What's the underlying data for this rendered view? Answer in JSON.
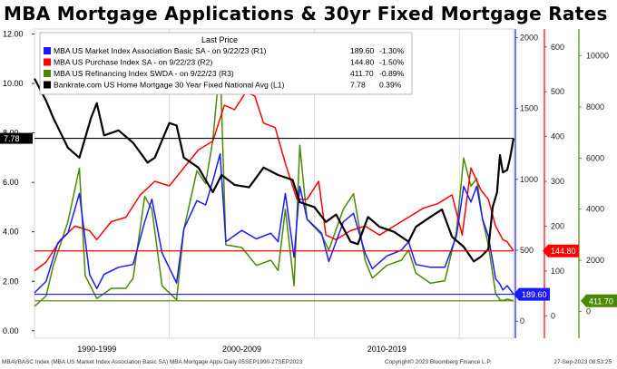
{
  "title": "MBA Mortgage Applications & 30yr Fixed Mortgage Rates",
  "footer": {
    "left": "MBAVBASC Index (MBA US Market Index Association Basic SA) MBA Mortgage Apps  Daily 05SEP1990-27SEP2023",
    "mid": "Copyright© 2023 Bloomberg Finance L.P.",
    "right": "27-Sep-2023 08:53:25"
  },
  "chart_data": {
    "type": "line",
    "x_range": [
      1990.7,
      2023.74
    ],
    "x_tick_labels": [
      {
        "label": "1990-1999",
        "x": 1995.0
      },
      {
        "label": "2000-2009",
        "x": 2005.0
      },
      {
        "label": "2010-2019",
        "x": 2015.0
      }
    ],
    "legend": {
      "header": "Last Price",
      "placement": "top-left",
      "entries": [
        {
          "text": "MBA US Market Index Association Basic SA -  on 9/22/23  (R1)",
          "last": "189.60",
          "change": "-1.30%",
          "color": "#1a1aff"
        },
        {
          "text": "MBA US Purchase Index SA -  on 9/22/23  (R2)",
          "last": "144.80",
          "change": "-1.50%",
          "color": "#ff0000"
        },
        {
          "text": "MBA US Refinancing Index SWDA -  on 9/22/23  (R3)",
          "last": "411.70",
          "change": "-0.89%",
          "color": "#4a8a00"
        },
        {
          "text": "Bankrate.com US Home Mortgage 30 Year Fixed National Avg  (L1)",
          "last": "7.78",
          "change": "0.39%",
          "color": "#000000"
        }
      ]
    },
    "axes": {
      "left": {
        "ylim": [
          -0.3,
          12.2
        ],
        "ticks": [
          0,
          2,
          4,
          6,
          8,
          10,
          12
        ],
        "tick_labels": [
          "0.00",
          "2.00",
          "4.00",
          "6.00",
          "8.00",
          "10.00",
          "12.00"
        ],
        "color": "#000000"
      },
      "right1": {
        "ylim": [
          -120,
          2060
        ],
        "ticks": [
          0,
          500,
          1000,
          1500,
          2000
        ],
        "tick_labels": [
          "0",
          "500",
          "1000",
          "1500",
          "2000"
        ],
        "color": "#1a1aff"
      },
      "right2": {
        "ylim": [
          -50,
          640
        ],
        "ticks": [
          0,
          100,
          200,
          300,
          400,
          500,
          600
        ],
        "tick_labels": [
          "0",
          "100",
          "200",
          "300",
          "400",
          "500",
          "600"
        ],
        "color": "#ff0000"
      },
      "right3": {
        "ylim": [
          -1050,
          11050
        ],
        "ticks": [
          0,
          2000,
          4000,
          6000,
          8000,
          10000
        ],
        "tick_labels": [
          "0",
          "2000",
          "4000",
          "6000",
          "8000",
          "10000"
        ],
        "color": "#4a8a00"
      }
    },
    "series": [
      {
        "name": "Bankrate.com US Home Mortgage 30 Year Fixed National Avg",
        "axis": "left",
        "color": "#000000",
        "last": "7.78",
        "points": [
          [
            1990.7,
            10.2
          ],
          [
            1991.5,
            9.3
          ],
          [
            1992.0,
            8.6
          ],
          [
            1993.0,
            7.4
          ],
          [
            1993.8,
            7.0
          ],
          [
            1994.6,
            8.6
          ],
          [
            1995.0,
            9.2
          ],
          [
            1995.5,
            7.9
          ],
          [
            1996.5,
            8.1
          ],
          [
            1997.5,
            7.6
          ],
          [
            1998.5,
            6.8
          ],
          [
            1999.0,
            7.0
          ],
          [
            2000.0,
            8.4
          ],
          [
            2000.5,
            8.3
          ],
          [
            2001.0,
            7.0
          ],
          [
            2002.0,
            6.6
          ],
          [
            2003.0,
            5.6
          ],
          [
            2003.6,
            6.3
          ],
          [
            2004.5,
            5.9
          ],
          [
            2005.5,
            5.8
          ],
          [
            2006.5,
            6.6
          ],
          [
            2007.5,
            6.3
          ],
          [
            2008.5,
            6.1
          ],
          [
            2009.0,
            5.2
          ],
          [
            2010.0,
            5.0
          ],
          [
            2010.8,
            4.4
          ],
          [
            2011.5,
            4.7
          ],
          [
            2012.5,
            3.6
          ],
          [
            2013.0,
            3.5
          ],
          [
            2013.7,
            4.6
          ],
          [
            2014.5,
            4.2
          ],
          [
            2015.5,
            4.0
          ],
          [
            2016.5,
            3.6
          ],
          [
            2017.0,
            4.2
          ],
          [
            2018.0,
            4.6
          ],
          [
            2018.8,
            4.9
          ],
          [
            2019.5,
            3.8
          ],
          [
            2020.3,
            3.4
          ],
          [
            2021.0,
            2.8
          ],
          [
            2021.5,
            3.0
          ],
          [
            2022.0,
            3.3
          ],
          [
            2022.3,
            5.0
          ],
          [
            2022.6,
            5.6
          ],
          [
            2022.8,
            7.1
          ],
          [
            2023.0,
            6.4
          ],
          [
            2023.3,
            6.5
          ],
          [
            2023.5,
            7.0
          ],
          [
            2023.74,
            7.78
          ]
        ]
      },
      {
        "name": "MBA US Market Index Association Basic SA",
        "axis": "right1",
        "color": "#1a1aff",
        "last": "189.60",
        "points": [
          [
            1990.7,
            200
          ],
          [
            1991.5,
            280
          ],
          [
            1992.3,
            550
          ],
          [
            1993.0,
            620
          ],
          [
            1993.8,
            900
          ],
          [
            1994.5,
            330
          ],
          [
            1995.0,
            230
          ],
          [
            1995.5,
            330
          ],
          [
            1996.5,
            380
          ],
          [
            1997.5,
            400
          ],
          [
            1998.3,
            700
          ],
          [
            1998.8,
            860
          ],
          [
            1999.5,
            480
          ],
          [
            2000.5,
            270
          ],
          [
            2001.0,
            650
          ],
          [
            2001.9,
            850
          ],
          [
            2002.5,
            820
          ],
          [
            2003.0,
            990
          ],
          [
            2003.5,
            1180
          ],
          [
            2003.9,
            560
          ],
          [
            2005.0,
            640
          ],
          [
            2006.0,
            580
          ],
          [
            2007.0,
            620
          ],
          [
            2007.5,
            560
          ],
          [
            2008.0,
            900
          ],
          [
            2008.6,
            450
          ],
          [
            2009.0,
            950
          ],
          [
            2009.5,
            720
          ],
          [
            2010.5,
            620
          ],
          [
            2011.0,
            420
          ],
          [
            2012.0,
            700
          ],
          [
            2012.7,
            760
          ],
          [
            2013.5,
            480
          ],
          [
            2014.0,
            370
          ],
          [
            2015.0,
            460
          ],
          [
            2016.0,
            500
          ],
          [
            2016.5,
            560
          ],
          [
            2017.0,
            400
          ],
          [
            2018.0,
            380
          ],
          [
            2019.0,
            380
          ],
          [
            2019.8,
            600
          ],
          [
            2020.3,
            950
          ],
          [
            2020.8,
            840
          ],
          [
            2021.2,
            950
          ],
          [
            2021.6,
            720
          ],
          [
            2022.0,
            600
          ],
          [
            2022.5,
            300
          ],
          [
            2022.8,
            260
          ],
          [
            2023.0,
            220
          ],
          [
            2023.3,
            250
          ],
          [
            2023.74,
            189.6
          ]
        ]
      },
      {
        "name": "MBA US Purchase Index SA",
        "axis": "right2",
        "color": "#ff0000",
        "last": "144.80",
        "points": [
          [
            1990.7,
            100
          ],
          [
            1991.5,
            120
          ],
          [
            1992.5,
            170
          ],
          [
            1993.5,
            200
          ],
          [
            1994.5,
            190
          ],
          [
            1995.0,
            170
          ],
          [
            1996.0,
            210
          ],
          [
            1997.0,
            220
          ],
          [
            1998.0,
            270
          ],
          [
            1999.0,
            300
          ],
          [
            2000.0,
            290
          ],
          [
            2001.0,
            330
          ],
          [
            2002.0,
            370
          ],
          [
            2003.0,
            390
          ],
          [
            2003.8,
            470
          ],
          [
            2004.5,
            460
          ],
          [
            2005.3,
            500
          ],
          [
            2005.9,
            490
          ],
          [
            2006.5,
            430
          ],
          [
            2007.3,
            420
          ],
          [
            2008.0,
            340
          ],
          [
            2008.8,
            260
          ],
          [
            2009.5,
            260
          ],
          [
            2010.3,
            300
          ],
          [
            2010.8,
            180
          ],
          [
            2011.5,
            170
          ],
          [
            2012.5,
            190
          ],
          [
            2013.5,
            200
          ],
          [
            2014.5,
            180
          ],
          [
            2015.5,
            200
          ],
          [
            2016.5,
            220
          ],
          [
            2017.5,
            240
          ],
          [
            2018.5,
            250
          ],
          [
            2019.5,
            270
          ],
          [
            2020.2,
            180
          ],
          [
            2020.8,
            330
          ],
          [
            2021.5,
            280
          ],
          [
            2022.0,
            260
          ],
          [
            2022.5,
            200
          ],
          [
            2023.0,
            170
          ],
          [
            2023.3,
            165
          ],
          [
            2023.74,
            144.8
          ]
        ]
      },
      {
        "name": "MBA US Refinancing Index SWDA",
        "axis": "right3",
        "color": "#4a8a00",
        "last": "411.70",
        "points": [
          [
            1990.7,
            200
          ],
          [
            1991.5,
            600
          ],
          [
            1992.0,
            1800
          ],
          [
            1993.0,
            3500
          ],
          [
            1993.8,
            5600
          ],
          [
            1994.2,
            1400
          ],
          [
            1995.0,
            500
          ],
          [
            1995.5,
            700
          ],
          [
            1996.0,
            900
          ],
          [
            1997.0,
            900
          ],
          [
            1997.5,
            1300
          ],
          [
            1998.3,
            4500
          ],
          [
            1998.8,
            4000
          ],
          [
            1999.5,
            1000
          ],
          [
            2000.5,
            450
          ],
          [
            2001.0,
            3200
          ],
          [
            2001.9,
            5500
          ],
          [
            2002.5,
            5000
          ],
          [
            2003.0,
            6700
          ],
          [
            2003.5,
            9800
          ],
          [
            2003.9,
            2600
          ],
          [
            2005.0,
            2500
          ],
          [
            2006.0,
            1800
          ],
          [
            2007.0,
            2000
          ],
          [
            2007.5,
            1600
          ],
          [
            2008.0,
            4000
          ],
          [
            2008.6,
            1000
          ],
          [
            2009.0,
            6500
          ],
          [
            2009.5,
            3600
          ],
          [
            2010.5,
            3000
          ],
          [
            2011.0,
            2400
          ],
          [
            2012.0,
            4000
          ],
          [
            2012.7,
            4600
          ],
          [
            2013.5,
            2000
          ],
          [
            2014.0,
            1300
          ],
          [
            2015.0,
            1800
          ],
          [
            2016.0,
            2000
          ],
          [
            2016.5,
            2400
          ],
          [
            2017.0,
            1500
          ],
          [
            2018.0,
            1100
          ],
          [
            2019.0,
            1200
          ],
          [
            2019.8,
            3100
          ],
          [
            2020.3,
            6000
          ],
          [
            2020.8,
            4900
          ],
          [
            2021.2,
            5200
          ],
          [
            2021.6,
            3600
          ],
          [
            2022.0,
            2600
          ],
          [
            2022.5,
            700
          ],
          [
            2022.8,
            450
          ],
          [
            2023.0,
            420
          ],
          [
            2023.3,
            480
          ],
          [
            2023.74,
            411.7
          ]
        ]
      }
    ]
  }
}
